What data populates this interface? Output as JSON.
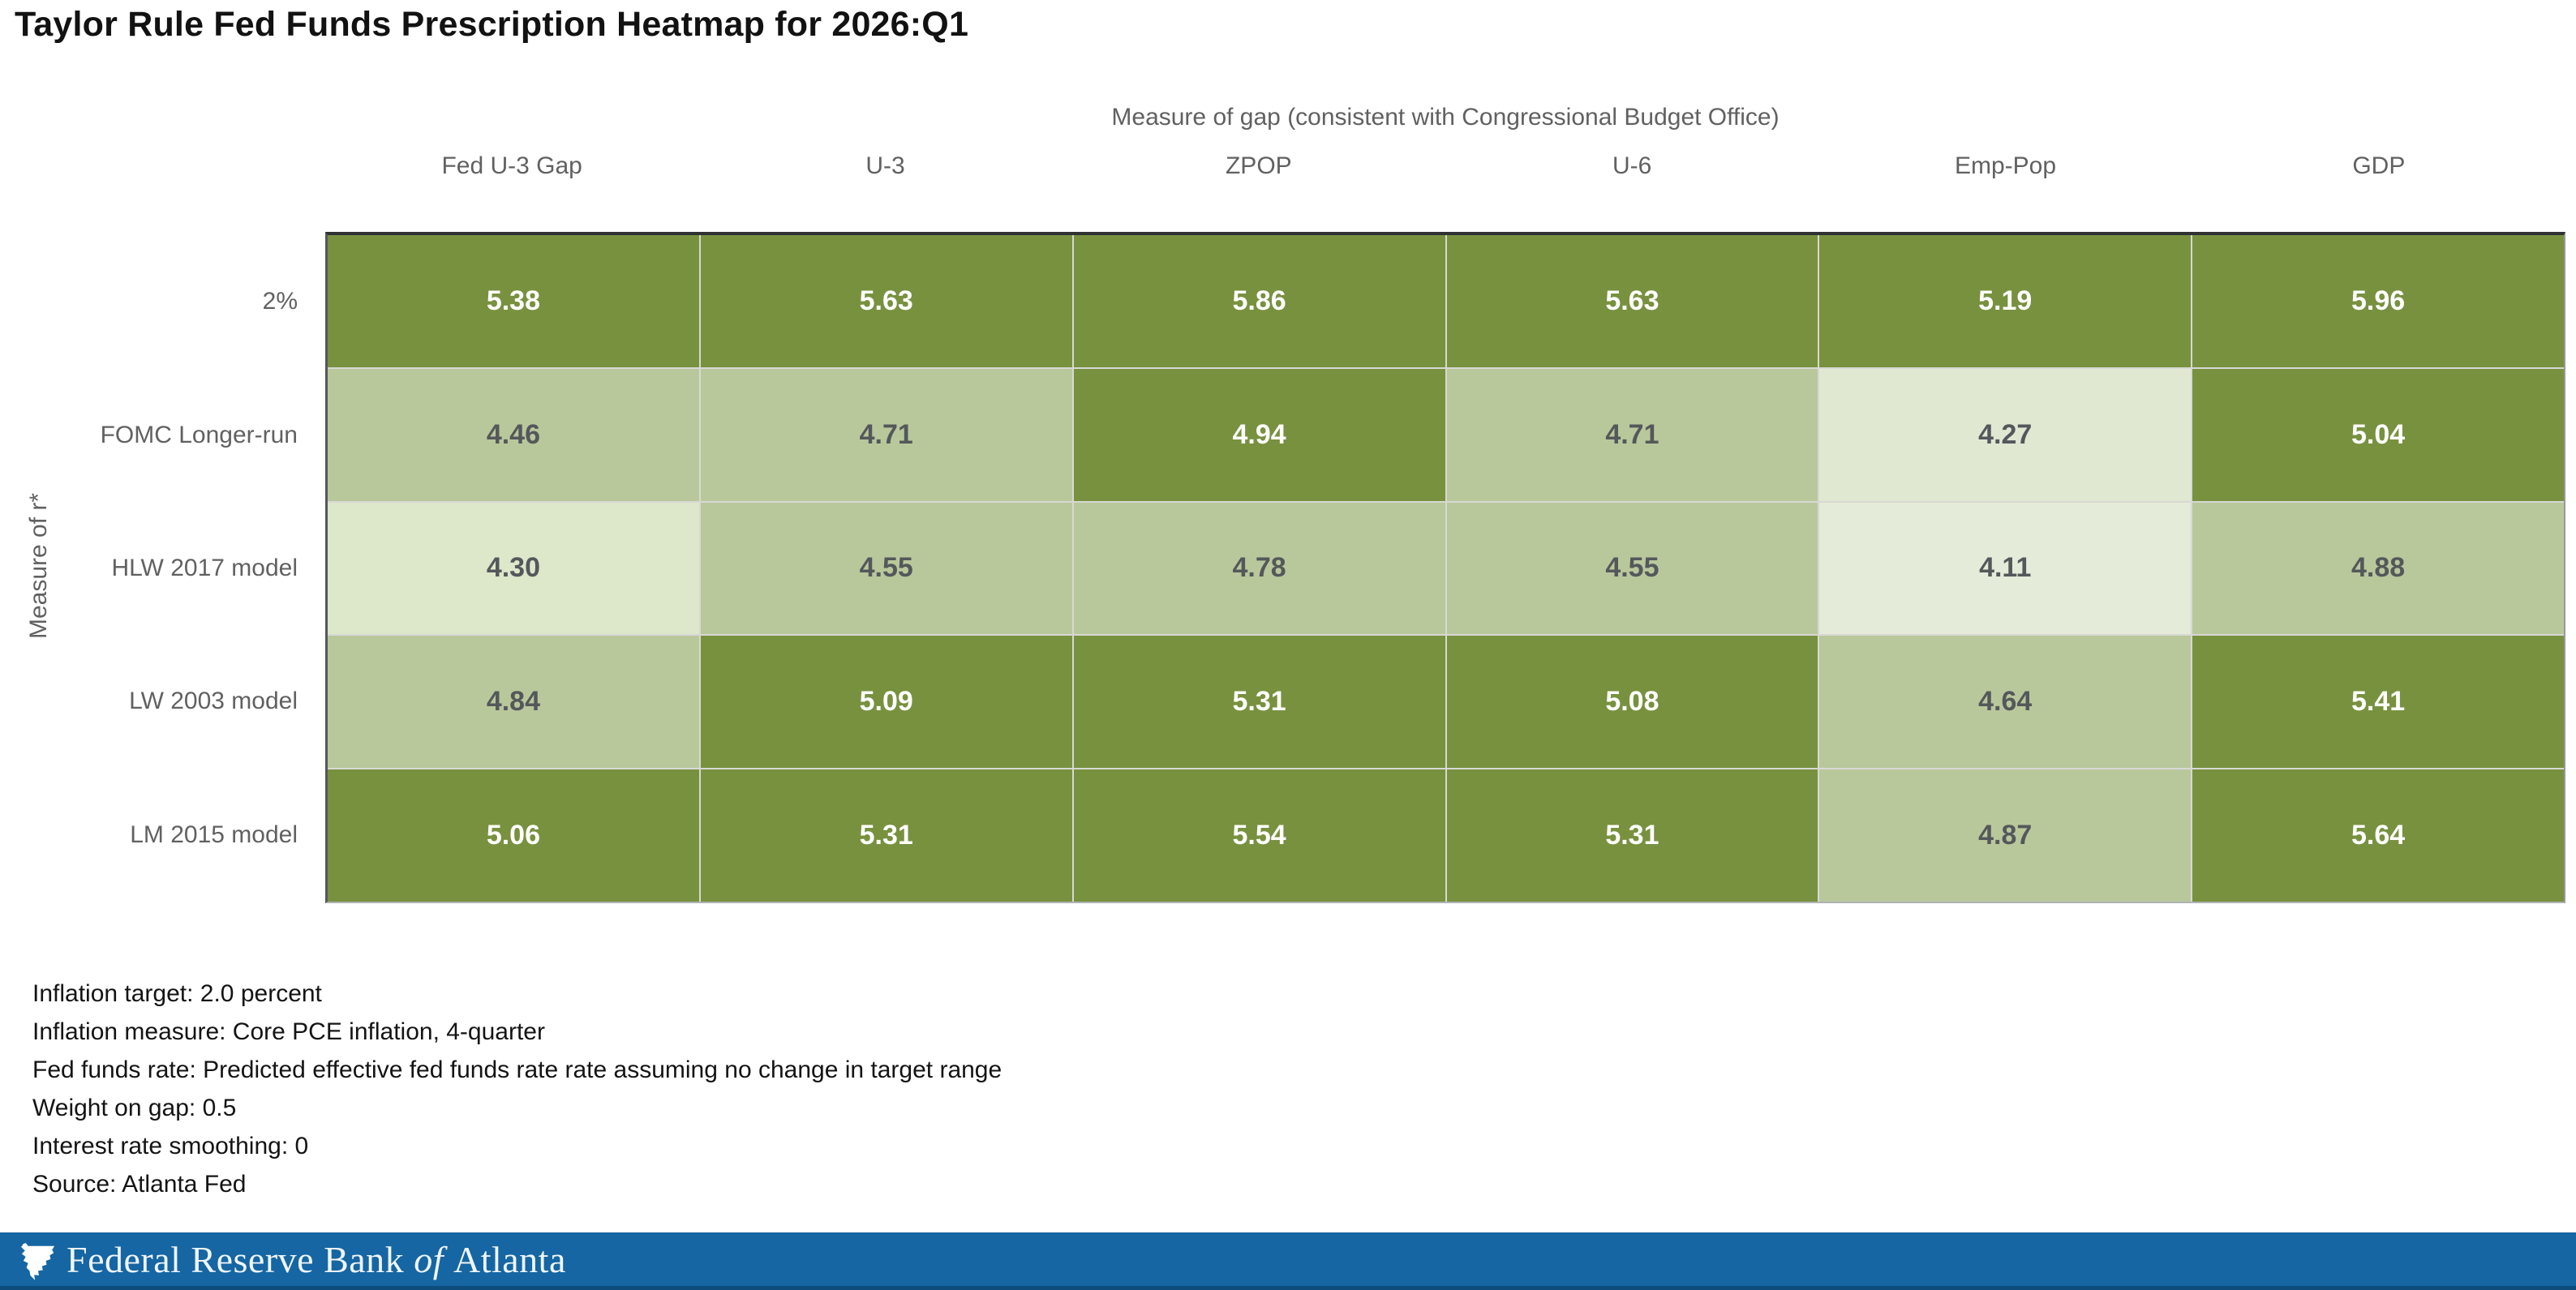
{
  "title": "Taylor Rule Fed Funds Prescription Heatmap for 2026:Q1",
  "chart_data": {
    "type": "heatmap",
    "title": "Taylor Rule Fed Funds Prescription Heatmap for 2026:Q1",
    "x_axis": {
      "title": "Measure of gap (consistent with Congressional Budget Office)",
      "categories": [
        "Fed U-3 Gap",
        "U-3",
        "ZPOP",
        "U-6",
        "Emp-Pop",
        "GDP"
      ]
    },
    "y_axis": {
      "title": "Measure of r*",
      "categories": [
        "2%",
        "FOMC Longer-run",
        "HLW 2017 model",
        "LW 2003 model",
        "LM 2015 model"
      ]
    },
    "values": [
      [
        5.38,
        5.63,
        5.86,
        5.63,
        5.19,
        5.96
      ],
      [
        4.46,
        4.71,
        4.94,
        4.71,
        4.27,
        5.04
      ],
      [
        4.3,
        4.55,
        4.78,
        4.55,
        4.11,
        4.88
      ],
      [
        4.84,
        5.09,
        5.31,
        5.08,
        4.64,
        5.41
      ],
      [
        5.06,
        5.31,
        5.54,
        5.31,
        4.87,
        5.64
      ]
    ],
    "value_format_decimals": 2,
    "cell_levels": [
      [
        "dark",
        "dark",
        "dark",
        "dark",
        "dark",
        "dark"
      ],
      [
        "medium",
        "medium",
        "dark",
        "medium",
        "lighter",
        "dark"
      ],
      [
        "light",
        "medium",
        "medium",
        "medium",
        "lightest",
        "medium"
      ],
      [
        "medium",
        "dark",
        "dark",
        "dark",
        "medium",
        "dark"
      ],
      [
        "dark",
        "dark",
        "dark",
        "dark",
        "medium",
        "dark"
      ]
    ],
    "palette": {
      "dark": "#78913f",
      "medium": "#b9c89b",
      "light": "#dde7ca",
      "lighter": "#e1e8d2",
      "lightest": "#e4ebd8"
    },
    "cell_text_colors": {
      "on_dark": "#ffffff",
      "on_light": "#54585b"
    },
    "legend": "none",
    "grid_line_color": "#d8d8d4"
  },
  "notes": [
    "Inflation target: 2.0 percent",
    "Inflation measure: Core PCE inflation, 4-quarter",
    "Fed funds rate: Predicted effective fed funds rate rate assuming no change in target range",
    "Weight on gap: 0.5",
    "Interest rate smoothing: 0",
    "Source: Atlanta Fed"
  ],
  "footer": {
    "bar_color": "#1566a3",
    "bottom_strip_color": "#0d4c7b",
    "text_color": "#f0f5f9",
    "logo_icon": "atlanta-fed-eagle",
    "brand_prefix": "Federal Reserve Bank",
    "brand_of": "of",
    "brand_suffix": "Atlanta"
  }
}
